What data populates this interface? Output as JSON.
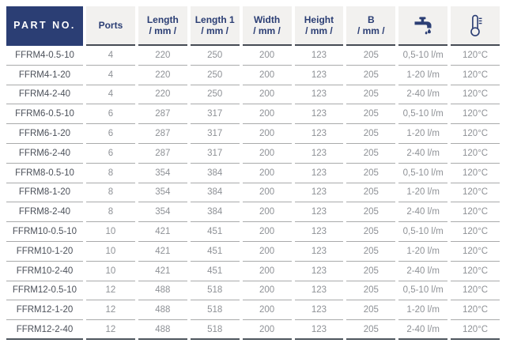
{
  "table": {
    "header": {
      "part_no": "PART NO.",
      "columns": [
        {
          "label": "Ports",
          "unit": ""
        },
        {
          "label": "Length",
          "unit": "/ mm /"
        },
        {
          "label": "Length 1",
          "unit": "/ mm /"
        },
        {
          "label": "Width",
          "unit": "/ mm /"
        },
        {
          "label": "Height",
          "unit": "/ mm /"
        },
        {
          "label": "B",
          "unit": "/ mm /"
        },
        {
          "icon": "faucet-icon"
        },
        {
          "icon": "thermometer-icon"
        }
      ]
    },
    "rows": [
      [
        "FFRM4-0.5-10",
        "4",
        "220",
        "250",
        "200",
        "123",
        "205",
        "0,5-10 l/m",
        "120°C"
      ],
      [
        "FFRM4-1-20",
        "4",
        "220",
        "250",
        "200",
        "123",
        "205",
        "1-20 l/m",
        "120°C"
      ],
      [
        "FFRM4-2-40",
        "4",
        "220",
        "250",
        "200",
        "123",
        "205",
        "2-40 l/m",
        "120°C"
      ],
      [
        "FFRM6-0.5-10",
        "6",
        "287",
        "317",
        "200",
        "123",
        "205",
        "0,5-10 l/m",
        "120°C"
      ],
      [
        "FFRM6-1-20",
        "6",
        "287",
        "317",
        "200",
        "123",
        "205",
        "1-20 l/m",
        "120°C"
      ],
      [
        "FFRM6-2-40",
        "6",
        "287",
        "317",
        "200",
        "123",
        "205",
        "2-40 l/m",
        "120°C"
      ],
      [
        "FFRM8-0.5-10",
        "8",
        "354",
        "384",
        "200",
        "123",
        "205",
        "0,5-10 l/m",
        "120°C"
      ],
      [
        "FFRM8-1-20",
        "8",
        "354",
        "384",
        "200",
        "123",
        "205",
        "1-20 l/m",
        "120°C"
      ],
      [
        "FFRM8-2-40",
        "8",
        "354",
        "384",
        "200",
        "123",
        "205",
        "2-40 l/m",
        "120°C"
      ],
      [
        "FFRM10-0.5-10",
        "10",
        "421",
        "451",
        "200",
        "123",
        "205",
        "0,5-10 l/m",
        "120°C"
      ],
      [
        "FFRM10-1-20",
        "10",
        "421",
        "451",
        "200",
        "123",
        "205",
        "1-20 l/m",
        "120°C"
      ],
      [
        "FFRM10-2-40",
        "10",
        "421",
        "451",
        "200",
        "123",
        "205",
        "2-40 l/m",
        "120°C"
      ],
      [
        "FFRM12-0.5-10",
        "12",
        "488",
        "518",
        "200",
        "123",
        "205",
        "0,5-10 l/m",
        "120°C"
      ],
      [
        "FFRM12-1-20",
        "12",
        "488",
        "518",
        "200",
        "123",
        "205",
        "1-20 l/m",
        "120°C"
      ],
      [
        "FFRM12-2-40",
        "12",
        "488",
        "518",
        "200",
        "123",
        "205",
        "2-40 l/m",
        "120°C"
      ]
    ]
  },
  "colors": {
    "navy": "#2b3e74",
    "header_bg": "#f2f1ef",
    "header_border": "#454b54",
    "row_line": "#a9aaab",
    "bottom_line": "#4e565e",
    "part_text": "#4c515a",
    "value_text": "#8e9196"
  }
}
